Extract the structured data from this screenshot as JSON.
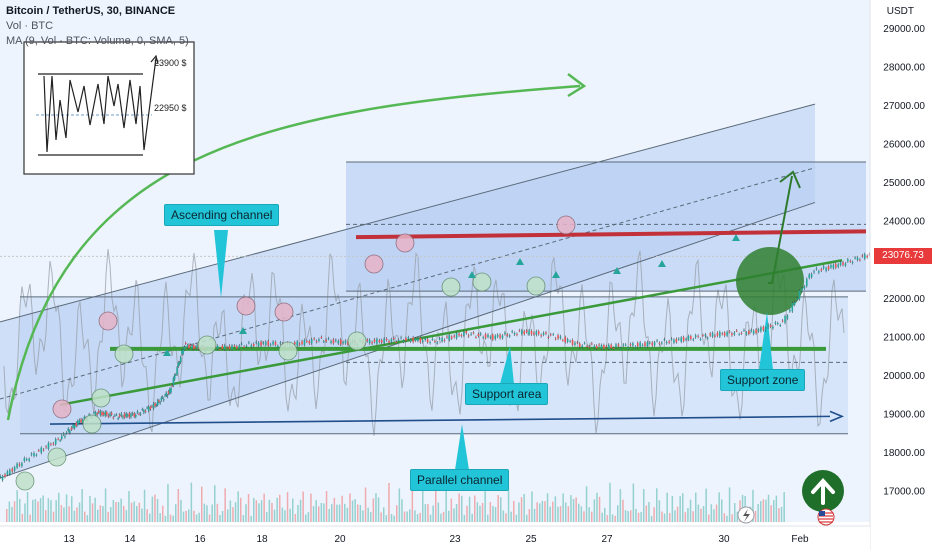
{
  "header": {
    "title": "Bitcoin / TetherUS, 30, BINANCE",
    "volume_label": "Vol · BTC",
    "ma_label": "MA (9, Vol · BTC: Volume, 0, SMA, 5)"
  },
  "axis": {
    "currency": "USDT",
    "last_price_label": "23076.73"
  },
  "inset": {
    "upper_label": "23900 $",
    "lower_label": "22950 $"
  },
  "callouts": {
    "ascending_channel": "Ascending channel",
    "support_area": "Support area",
    "parallel_channel": "Parallel channel",
    "support_zone": "Support zone"
  },
  "colors": {
    "background": "#ffffff",
    "band": "#cfe0f8",
    "up_candle": "#26a69a",
    "down_candle": "#ef5350",
    "support_line": "#3a9a3a",
    "resistance_line": "#c2313a",
    "channel_line": "#5a6a7a",
    "arrow_green": "#55b855",
    "callout": "#22c4d8",
    "price_tag": "#e83a3a",
    "badge_green": "#1f6e2a"
  },
  "icons": {
    "up_badge": "arrow-up-circle-icon",
    "flag": "us-flag-icon",
    "bolt": "lightning-icon"
  },
  "chart_data": {
    "type": "line",
    "title": "Bitcoin / TetherUS, 30, BINANCE",
    "xlabel": "",
    "ylabel": "USDT",
    "ylim": [
      16500,
      29500
    ],
    "x_ticks": [
      "13",
      "14",
      "16",
      "18",
      "20",
      "23",
      "25",
      "27",
      "30",
      "Feb"
    ],
    "y_ticks": [
      17000,
      18000,
      19000,
      20000,
      21000,
      22000,
      23000,
      24000,
      25000,
      26000,
      27000,
      28000,
      29000
    ],
    "y_tick_labels": [
      "17000.00",
      "18000.00",
      "19000.00",
      "20000.00",
      "21000.00",
      "22000.00",
      "23000.00",
      "24000.00",
      "25000.00",
      "26000.00",
      "27000.00",
      "28000.00",
      "29000.00"
    ],
    "series": [
      {
        "values": [
          [
            12.0,
            17250
          ],
          [
            12.3,
            17350
          ],
          [
            12.6,
            17900
          ],
          [
            12.9,
            18350
          ],
          [
            13.1,
            18800
          ],
          [
            13.3,
            19050
          ],
          [
            13.5,
            18950
          ],
          [
            13.7,
            19000
          ],
          [
            13.9,
            19250
          ],
          [
            14.05,
            19600
          ],
          [
            14.2,
            20800
          ],
          [
            14.4,
            20700
          ],
          [
            14.7,
            20750
          ],
          [
            15.0,
            20850
          ],
          [
            15.3,
            20800
          ],
          [
            15.6,
            20950
          ],
          [
            15.9,
            20850
          ],
          [
            16.2,
            20900
          ],
          [
            16.5,
            20950
          ],
          [
            16.8,
            20900
          ],
          [
            17.1,
            21100
          ],
          [
            17.4,
            21000
          ],
          [
            17.7,
            21150
          ],
          [
            18.0,
            21050
          ],
          [
            18.3,
            20800
          ],
          [
            18.6,
            20750
          ],
          [
            18.9,
            20800
          ],
          [
            19.2,
            20900
          ],
          [
            19.5,
            21000
          ],
          [
            19.8,
            21100
          ],
          [
            20.1,
            21150
          ],
          [
            20.4,
            21400
          ],
          [
            20.7,
            22700
          ],
          [
            21.0,
            22900
          ],
          [
            21.3,
            23150
          ],
          [
            21.6,
            23050
          ],
          [
            21.9,
            22900
          ],
          [
            22.2,
            22850
          ],
          [
            22.5,
            22700
          ],
          [
            22.8,
            22650
          ],
          [
            23.1,
            22700
          ],
          [
            23.4,
            22750
          ],
          [
            23.7,
            22800
          ],
          [
            24.0,
            22850
          ],
          [
            24.3,
            22800
          ],
          [
            24.6,
            22700
          ],
          [
            24.9,
            22600
          ],
          [
            25.2,
            22650
          ],
          [
            25.5,
            22800
          ],
          [
            25.8,
            23100
          ],
          [
            26.1,
            23450
          ],
          [
            26.4,
            23050
          ],
          [
            26.7,
            22900
          ],
          [
            27.0,
            22950
          ],
          [
            27.3,
            23000
          ],
          [
            27.6,
            22850
          ],
          [
            27.9,
            22950
          ],
          [
            28.2,
            23100
          ],
          [
            28.5,
            22950
          ],
          [
            28.8,
            22900
          ],
          [
            29.1,
            23050
          ],
          [
            29.4,
            23200
          ],
          [
            29.7,
            23600
          ],
          [
            30.0,
            23700
          ],
          [
            30.3,
            23400
          ],
          [
            30.5,
            23076.73
          ]
        ]
      }
    ],
    "annotations": {
      "ascending_channel": "Ascending channel",
      "support_area": "Support area",
      "parallel_channel": "Parallel channel",
      "support_zone": "Support zone",
      "resistance_level": 23700,
      "support_level": 20700,
      "last_price": 23076.73
    },
    "grid": false,
    "legend": "none"
  }
}
